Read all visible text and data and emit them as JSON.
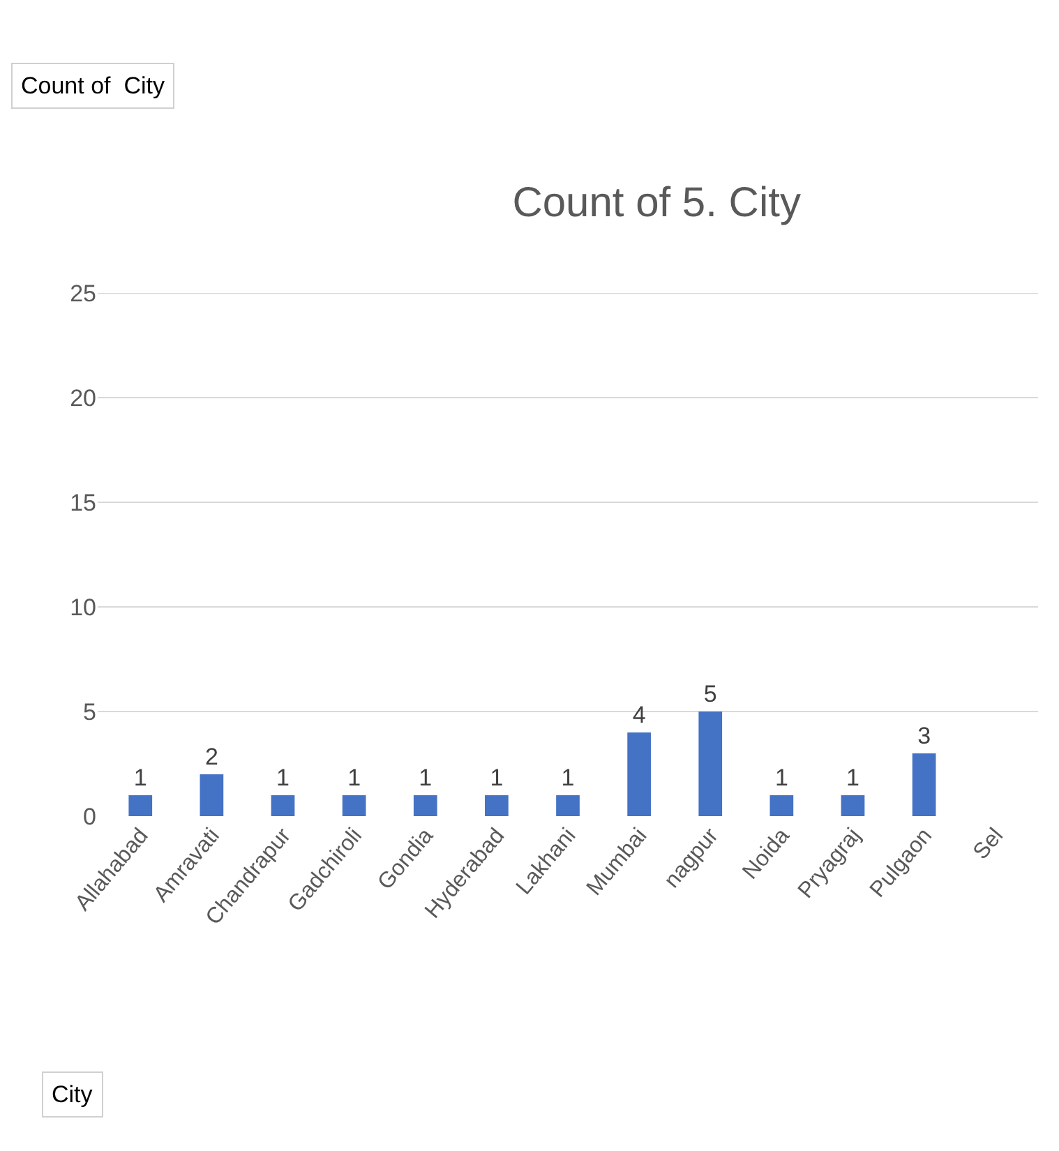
{
  "chart_data": {
    "type": "bar",
    "title": "Count of 5. City",
    "categories": [
      "Allahabad",
      "Amravati",
      "Chandrapur",
      "Gadchiroli",
      "Gondia",
      "Hyderabad",
      "Lakhani",
      "Mumbai",
      "nagpur",
      "Noida",
      "Pryagraj",
      "Pulgaon",
      "Sel"
    ],
    "values": [
      1,
      2,
      1,
      1,
      1,
      1,
      1,
      4,
      5,
      1,
      1,
      3,
      null
    ],
    "color": "#4472c4",
    "ylim": [
      0,
      25
    ],
    "yticks": [
      0,
      5,
      10,
      15,
      20,
      25
    ],
    "grid": "y",
    "data_labels": true,
    "annotations": [
      "Count of  City",
      "City"
    ]
  }
}
